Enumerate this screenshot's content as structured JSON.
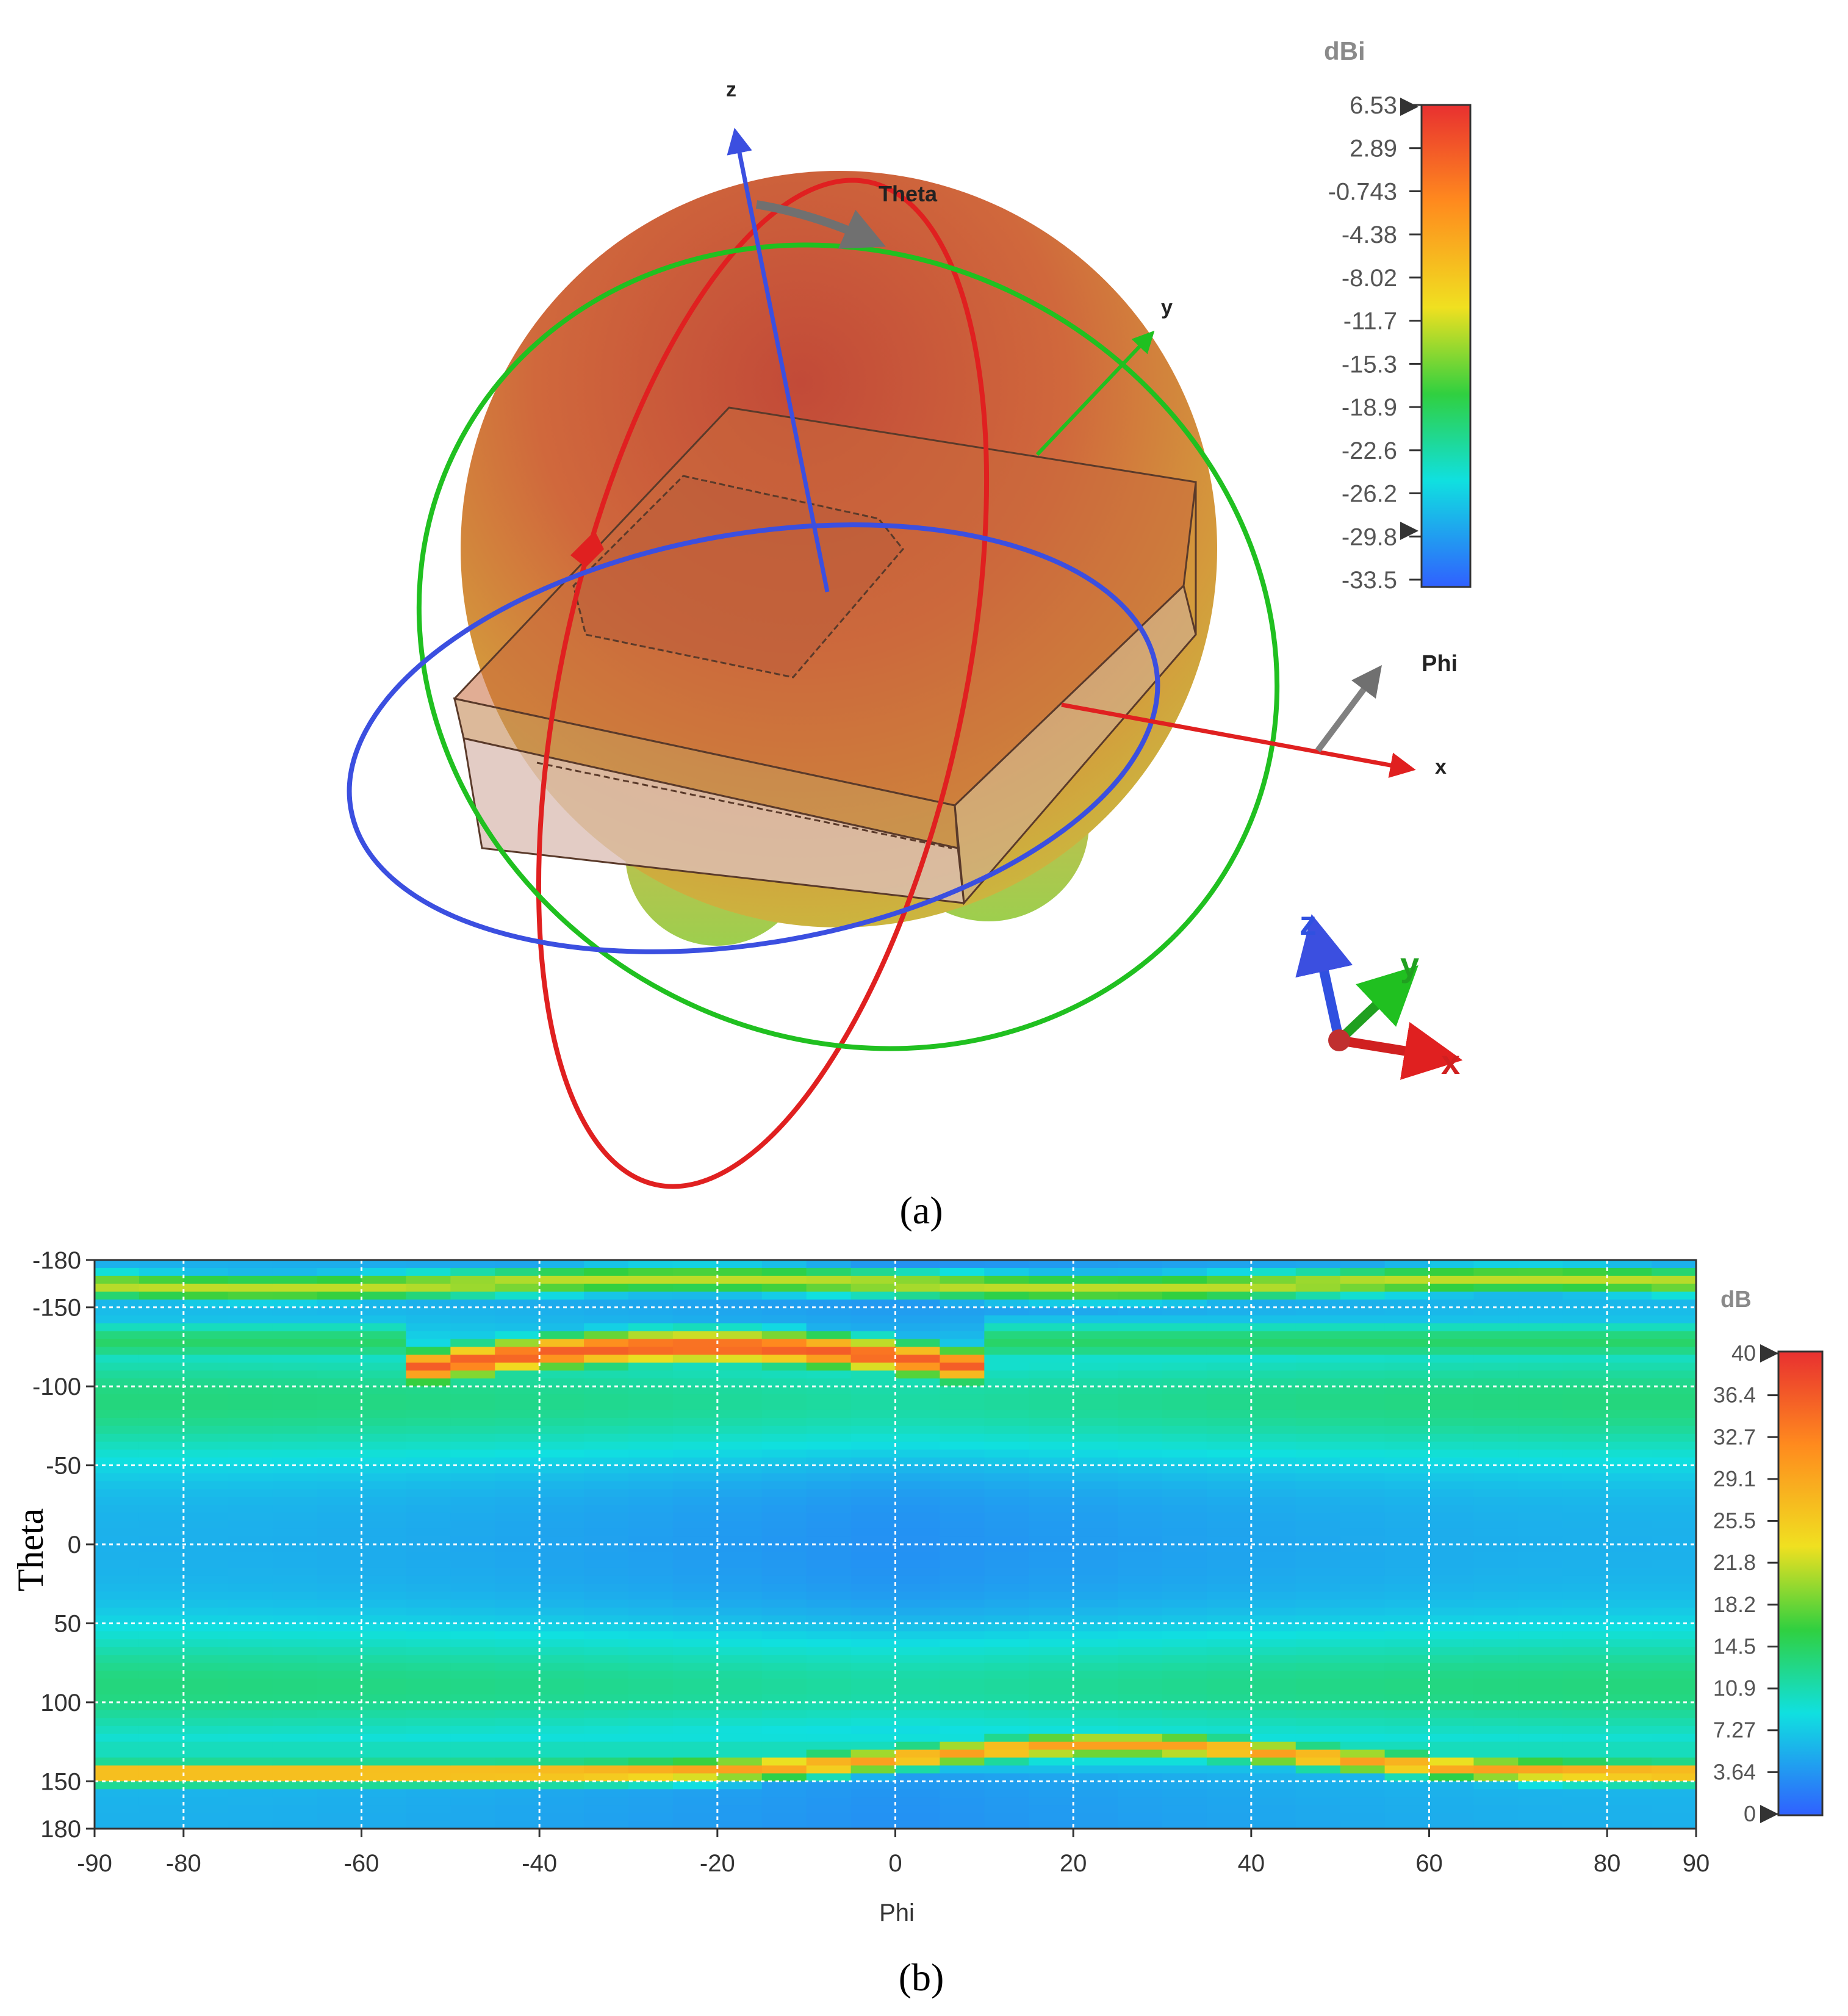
{
  "panel_a": {
    "caption": "(a)",
    "axis_labels": {
      "z": "z",
      "y": "y",
      "x": "x",
      "theta": "Theta",
      "phi": "Phi"
    },
    "triad_labels": {
      "z": "z",
      "y": "y",
      "x": "x"
    },
    "colors": {
      "z_axis": "#3b4fe0",
      "x_axis": "#e02020",
      "y_axis": "#20c020",
      "pattern_top": "#c8553a",
      "pattern_bottom": "#b8c840"
    }
  },
  "panel_b": {
    "caption": "(b)"
  },
  "chart_data": [
    {
      "type": "other",
      "subtype": "3D far-field radiation pattern",
      "colorbar": {
        "unit": "dBi",
        "ticks": [
          "6.53",
          "2.89",
          "-0.743",
          "-4.38",
          "-8.02",
          "-11.7",
          "-15.3",
          "-18.9",
          "-22.6",
          "-26.2",
          "-29.8",
          "-33.5"
        ],
        "range": [
          -33.5,
          6.53
        ],
        "colors": [
          "#e83030",
          "#ff8a1e",
          "#f0e020",
          "#30d040",
          "#10e0e0",
          "#3060ff"
        ]
      }
    },
    {
      "type": "heatmap",
      "xlabel": "Phi",
      "ylabel": "Theta",
      "xlim": [
        -90,
        90
      ],
      "ylim": [
        -180,
        180
      ],
      "x_ticks": [
        "-90",
        "-80",
        "-60",
        "-40",
        "-20",
        "0",
        "20",
        "40",
        "60",
        "80",
        "90"
      ],
      "y_ticks": [
        "-180",
        "-150",
        "-100",
        "-50",
        "0",
        "50",
        "100",
        "150",
        "180"
      ],
      "grid": true,
      "colorbar": {
        "unit": "dB",
        "ticks": [
          "40",
          "36.4",
          "32.7",
          "29.1",
          "25.5",
          "21.8",
          "18.2",
          "14.5",
          "10.9",
          "7.27",
          "3.64",
          "0"
        ],
        "range": [
          0,
          40
        ],
        "colors": [
          "#e83030",
          "#ff8a1e",
          "#f0e020",
          "#30d040",
          "#10e0e0",
          "#3060ff"
        ]
      },
      "features": [
        {
          "theta": -165,
          "phi_range": [
            -90,
            90
          ],
          "level_db": 25
        },
        {
          "theta": -125,
          "phi_range": [
            -50,
            5
          ],
          "level_db": 38
        },
        {
          "theta": 145,
          "phi_range": [
            -90,
            90
          ],
          "level_db": 30
        },
        {
          "theta": 0,
          "phi_range": [
            -90,
            90
          ],
          "level_db": 4
        }
      ]
    }
  ]
}
